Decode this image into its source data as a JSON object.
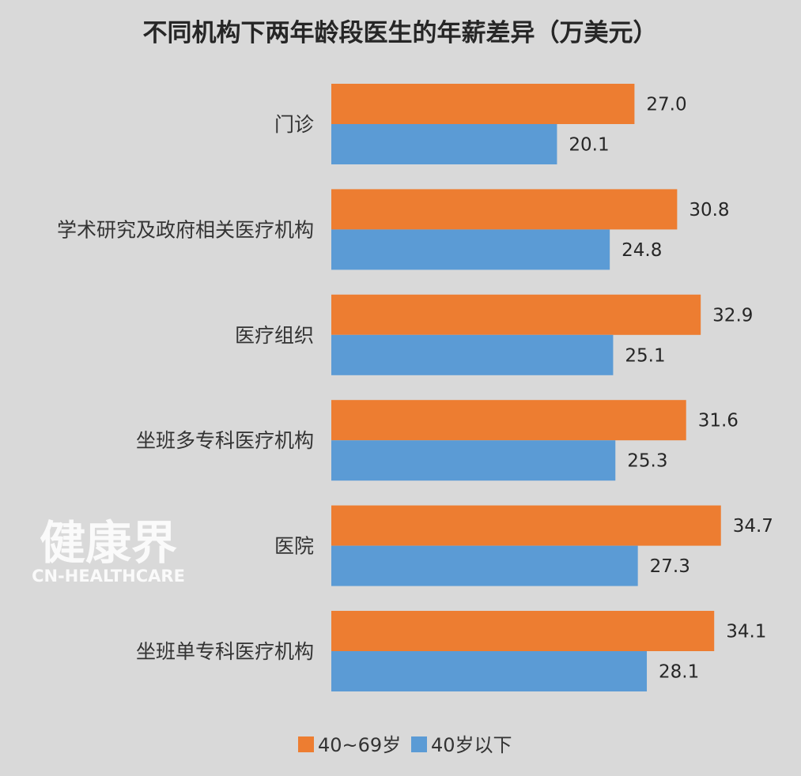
{
  "chart_data": {
    "type": "bar",
    "orientation": "horizontal",
    "title": "不同机构下两年龄段医生的年薪差异（万美元）",
    "categories": [
      "门诊",
      "学术研究及政府相关医疗机构",
      "医疗组织",
      "坐班多专科医疗机构",
      "医院",
      "坐班单专科医疗机构"
    ],
    "series": [
      {
        "name": "40~69岁",
        "color": "#ed7d31",
        "values": [
          27.0,
          30.8,
          32.9,
          31.6,
          34.7,
          34.1
        ]
      },
      {
        "name": "40岁以下",
        "color": "#5b9bd5",
        "values": [
          20.1,
          24.8,
          25.1,
          25.3,
          27.3,
          28.1
        ]
      }
    ],
    "xlim": [
      0,
      40
    ],
    "grid": false,
    "legend_position": "bottom",
    "data_labels": true
  },
  "watermark": {
    "main": "健康界",
    "sub": "CN-HEALTHCARE"
  }
}
